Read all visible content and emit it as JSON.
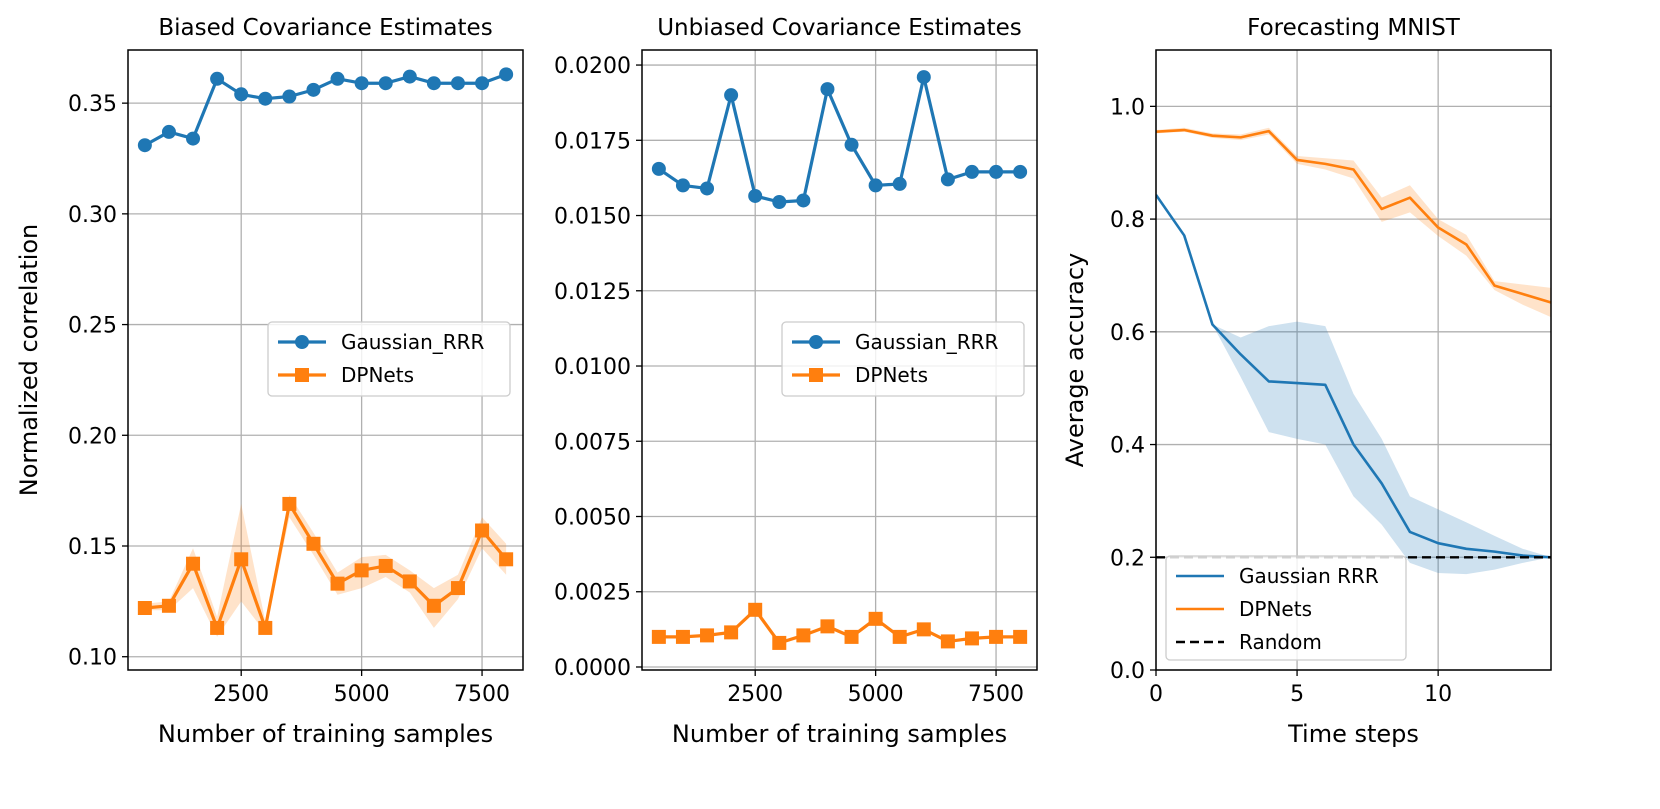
{
  "figure": {
    "description": "three-panel figure"
  },
  "chart_data": [
    {
      "type": "line",
      "title": "Biased Covariance Estimates",
      "xlabel": "Number of training samples",
      "ylabel": "Normalized correlation",
      "xlim": [
        150,
        8350
      ],
      "ylim": [
        0.094,
        0.374
      ],
      "xticks": [
        2500,
        5000,
        7500
      ],
      "xtick_labels": [
        "2500",
        "5000",
        "7500"
      ],
      "yticks": [
        0.1,
        0.15,
        0.2,
        0.25,
        0.3,
        0.35
      ],
      "ytick_labels": [
        "0.10",
        "0.15",
        "0.20",
        "0.25",
        "0.30",
        "0.35"
      ],
      "grid": true,
      "legend": "center-right",
      "x": [
        500,
        1000,
        1500,
        2000,
        2500,
        3000,
        3500,
        4000,
        4500,
        5000,
        5500,
        6000,
        6500,
        7000,
        7500,
        8000
      ],
      "series": [
        {
          "name": "Gaussian_RRR",
          "color": "#1f77b4",
          "marker": "circle",
          "values": [
            0.331,
            0.337,
            0.334,
            0.361,
            0.354,
            0.352,
            0.353,
            0.356,
            0.361,
            0.359,
            0.359,
            0.362,
            0.359,
            0.359,
            0.359,
            0.363
          ]
        },
        {
          "name": "DPNets",
          "color": "#ff7f0e",
          "marker": "square",
          "values": [
            0.122,
            0.123,
            0.142,
            0.113,
            0.144,
            0.113,
            0.169,
            0.151,
            0.133,
            0.139,
            0.141,
            0.134,
            0.123,
            0.131,
            0.157,
            0.144
          ],
          "band_lower": [
            0.121,
            0.121,
            0.131,
            0.109,
            0.125,
            0.111,
            0.163,
            0.146,
            0.128,
            0.131,
            0.136,
            0.129,
            0.113,
            0.126,
            0.149,
            0.137
          ],
          "band_upper": [
            0.124,
            0.125,
            0.149,
            0.118,
            0.169,
            0.116,
            0.173,
            0.156,
            0.138,
            0.145,
            0.146,
            0.139,
            0.131,
            0.137,
            0.163,
            0.151
          ]
        }
      ]
    },
    {
      "type": "line",
      "title": "Unbiased Covariance Estimates",
      "xlabel": "Number of training samples",
      "ylabel": "",
      "xlim": [
        150,
        8350
      ],
      "ylim": [
        -0.0001,
        0.0205
      ],
      "xticks": [
        2500,
        5000,
        7500
      ],
      "xtick_labels": [
        "2500",
        "5000",
        "7500"
      ],
      "yticks": [
        0.0,
        0.0025,
        0.005,
        0.0075,
        0.01,
        0.0125,
        0.015,
        0.0175,
        0.02
      ],
      "ytick_labels": [
        "0.0000",
        "0.0025",
        "0.0050",
        "0.0075",
        "0.0100",
        "0.0125",
        "0.0150",
        "0.0175",
        "0.0200"
      ],
      "grid": true,
      "legend": "center-right",
      "x": [
        500,
        1000,
        1500,
        2000,
        2500,
        3000,
        3500,
        4000,
        4500,
        5000,
        5500,
        6000,
        6500,
        7000,
        7500,
        8000
      ],
      "series": [
        {
          "name": "Gaussian_RRR",
          "color": "#1f77b4",
          "marker": "circle",
          "values": [
            0.01655,
            0.016,
            0.0159,
            0.019,
            0.01565,
            0.01545,
            0.0155,
            0.0192,
            0.01735,
            0.016,
            0.01605,
            0.0196,
            0.0162,
            0.01645,
            0.01645,
            0.01645
          ]
        },
        {
          "name": "DPNets",
          "color": "#ff7f0e",
          "marker": "square",
          "values": [
            0.001,
            0.001,
            0.00105,
            0.00115,
            0.0019,
            0.0008,
            0.00105,
            0.00135,
            0.001,
            0.0016,
            0.001,
            0.00125,
            0.00085,
            0.00095,
            0.001,
            0.001
          ]
        }
      ]
    },
    {
      "type": "line",
      "title": "Forecasting MNIST",
      "xlabel": "Time steps",
      "ylabel": "Average accuracy",
      "xlim": [
        0,
        14
      ],
      "ylim": [
        0,
        1.1
      ],
      "xticks": [
        0,
        5,
        10
      ],
      "xtick_labels": [
        "0",
        "5",
        "10"
      ],
      "yticks": [
        0,
        0.2,
        0.4,
        0.6,
        0.8,
        1.0
      ],
      "ytick_labels": [
        "0.0",
        "0.2",
        "0.4",
        "0.6",
        "0.8",
        "1.0"
      ],
      "grid": true,
      "legend": "lower-left",
      "x": [
        0,
        1,
        2,
        3,
        4,
        5,
        6,
        7,
        8,
        9,
        10,
        11,
        12,
        13,
        14
      ],
      "series": [
        {
          "name": "Gaussian RRR",
          "color": "#1f77b4",
          "style": "solid",
          "values": [
            0.843,
            0.771,
            0.613,
            0.56,
            0.512,
            0.509,
            0.506,
            0.4,
            0.331,
            0.245,
            0.225,
            0.215,
            0.21,
            0.203,
            0.2
          ],
          "band_lower": [
            0.843,
            0.771,
            0.613,
            0.52,
            0.422,
            0.41,
            0.4,
            0.308,
            0.258,
            0.19,
            0.172,
            0.17,
            0.178,
            0.19,
            0.2
          ],
          "band_upper": [
            0.843,
            0.771,
            0.613,
            0.59,
            0.61,
            0.618,
            0.61,
            0.49,
            0.41,
            0.308,
            0.285,
            0.262,
            0.238,
            0.215,
            0.2
          ]
        },
        {
          "name": "DPNets",
          "color": "#ff7f0e",
          "style": "solid",
          "values": [
            0.955,
            0.958,
            0.948,
            0.945,
            0.956,
            0.905,
            0.898,
            0.888,
            0.818,
            0.838,
            0.785,
            0.755,
            0.682,
            0.667,
            0.652
          ],
          "band_lower": [
            0.952,
            0.955,
            0.944,
            0.94,
            0.95,
            0.898,
            0.888,
            0.872,
            0.795,
            0.812,
            0.77,
            0.735,
            0.674,
            0.648,
            0.626
          ],
          "band_upper": [
            0.958,
            0.962,
            0.952,
            0.95,
            0.962,
            0.912,
            0.908,
            0.904,
            0.838,
            0.86,
            0.8,
            0.772,
            0.69,
            0.684,
            0.678
          ]
        },
        {
          "name": "Random",
          "color": "#000000",
          "style": "dashed",
          "values": [
            0.2,
            0.2,
            0.2,
            0.2,
            0.2,
            0.2,
            0.2,
            0.2,
            0.2,
            0.2,
            0.2,
            0.2,
            0.2,
            0.2,
            0.2
          ]
        }
      ]
    }
  ]
}
